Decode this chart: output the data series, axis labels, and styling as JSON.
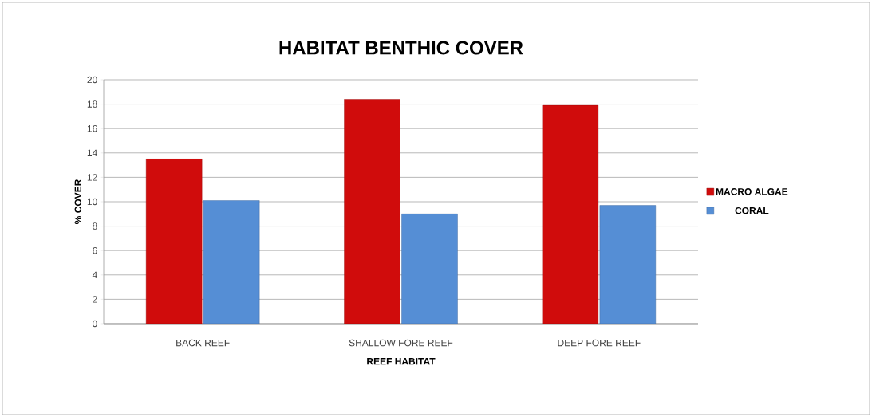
{
  "chart_data": {
    "type": "bar",
    "title": "HABITAT BENTHIC COVER",
    "xlabel": "REEF HABITAT",
    "ylabel": "% COVER",
    "categories": [
      "BACK REEF",
      "SHALLOW FORE REEF",
      "DEEP FORE REEF"
    ],
    "series": [
      {
        "name": "MACRO ALGAE",
        "color": "#d00c0c",
        "values": [
          13.5,
          18.4,
          17.9
        ]
      },
      {
        "name": "CORAL",
        "color": "#558ed5",
        "values": [
          10.1,
          9.0,
          9.7
        ]
      }
    ],
    "ylim": [
      0,
      20
    ],
    "yticks": [
      0,
      2,
      4,
      6,
      8,
      10,
      12,
      14,
      16,
      18,
      20
    ],
    "grid": "y",
    "legend": "right"
  }
}
